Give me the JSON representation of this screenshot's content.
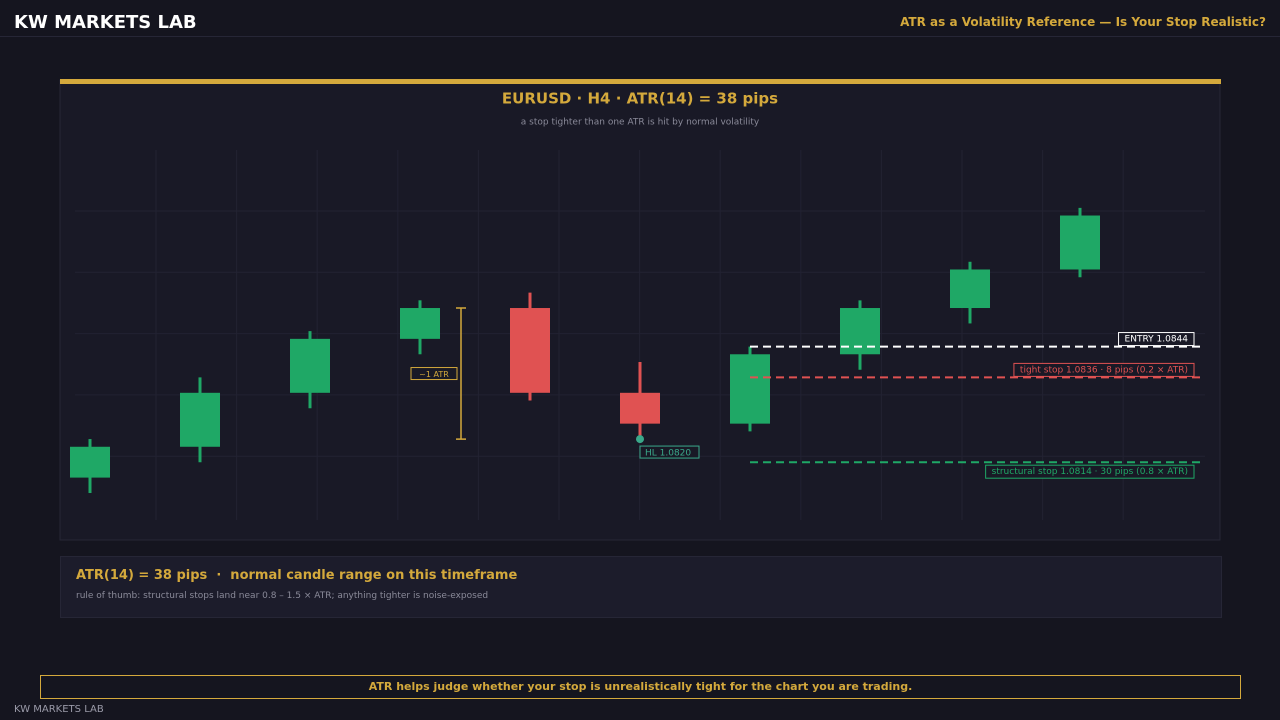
{
  "header": {
    "brand": "KW MARKETS LAB",
    "headline": "ATR as a Volatility Reference — Is Your Stop Realistic?"
  },
  "chart_data": {
    "type": "candlestick",
    "title": "EURUSD · H4 · ATR(14) = 38 pips",
    "subtitle": "a stop tighter than one ATR is hit by normal volatility",
    "open": [
      1.081,
      1.0818,
      1.0832,
      1.0846,
      1.0854,
      1.0832,
      1.0824,
      1.0842,
      1.0854,
      1.0864
    ],
    "high": [
      1.082,
      1.0836,
      1.0848,
      1.0856,
      1.0858,
      1.084,
      1.0844,
      1.0856,
      1.0866,
      1.088
    ],
    "low": [
      1.0806,
      1.0814,
      1.0828,
      1.0842,
      1.083,
      1.082,
      1.0822,
      1.0838,
      1.085,
      1.0862
    ],
    "close": [
      1.0818,
      1.0832,
      1.0846,
      1.0854,
      1.0832,
      1.0824,
      1.0842,
      1.0854,
      1.0864,
      1.0878
    ],
    "up_color": "#1fa866",
    "down_color": "#e05252",
    "ylim": [
      1.0799,
      1.0895
    ],
    "levels": [
      {
        "label": "ENTRY 1.0844",
        "value": 1.0844,
        "color": "#ffffff"
      },
      {
        "label": "tight stop 1.0836 · 8 pips (0.2 × ATR)",
        "value": 1.0836,
        "color": "#e05252"
      },
      {
        "label": "structural stop 1.0814 · 30 pips (0.8 × ATR)",
        "value": 1.0814,
        "color": "#1fa866"
      }
    ],
    "annotations": [
      {
        "text": "HL 1.0820",
        "value": 1.082,
        "color": "#3aa88a"
      }
    ],
    "atr_bracket": {
      "label": "~1 ATR",
      "range": [
        1.082,
        1.0854
      ],
      "color": "#d4a93c"
    }
  },
  "info": {
    "title": "ATR(14) = 38 pips  ·  normal candle range on this timeframe",
    "note": "rule of thumb: structural stops land near 0.8 – 1.5 × ATR; anything tighter is noise-exposed"
  },
  "footer": {
    "banner": "ATR helps judge whether your stop is unrealistically tight for the chart you are trading.",
    "brand": "KW MARKETS LAB"
  }
}
